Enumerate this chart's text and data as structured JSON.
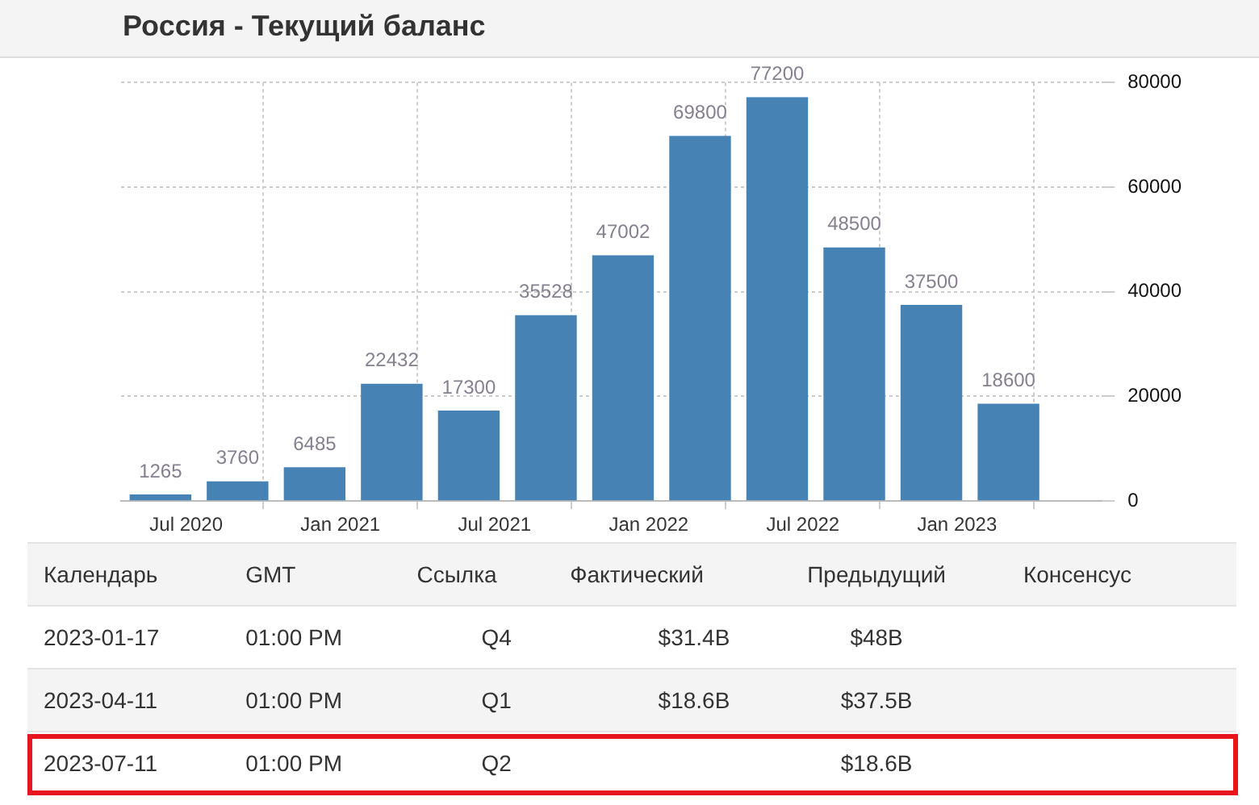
{
  "chart_data": [
    {
      "type": "bar",
      "title": "Россия - Текущий баланс",
      "x": [
        "2020-06",
        "2020-09",
        "2020-12",
        "2021-03",
        "2021-06",
        "2021-09",
        "2021-12",
        "2022-03",
        "2022-06",
        "2022-09",
        "2022-12",
        "2023-03"
      ],
      "values": [
        1265,
        3760,
        6485,
        22432,
        17300,
        35528,
        47002,
        69800,
        77200,
        48500,
        37500,
        18600
      ],
      "color": "#4682b4",
      "xlim": [
        "2020-04-15",
        "2023-06-20"
      ],
      "xticks": [
        {
          "value": "2020-07",
          "label": "Jul 2020"
        },
        {
          "value": "2021-01",
          "label": "Jan 2021"
        },
        {
          "value": "2021-07",
          "label": "Jul 2021"
        },
        {
          "value": "2022-01",
          "label": "Jan 2022"
        },
        {
          "value": "2022-07",
          "label": "Jul 2022"
        },
        {
          "value": "2023-01",
          "label": "Jan 2023"
        }
      ],
      "ylim": [
        0,
        80000
      ],
      "yticks": [
        0,
        20000,
        40000,
        60000,
        80000
      ],
      "grid": true,
      "data_labels": true,
      "legend": false
    },
    {
      "type": "other",
      "categories": [
        "Календарь",
        "GMT",
        "Ссылка",
        "Фактический",
        "Предыдущий",
        "Консенсус"
      ],
      "y_categories": [
        "2023-01-17",
        "2023-04-11",
        "2023-07-11"
      ],
      "cell_labels": [
        [
          "01:00 PM",
          "Q4",
          "$31.4B",
          "$48B",
          null
        ],
        [
          "01:00 PM",
          "Q1",
          "$18.6B",
          "$37.5B",
          null
        ],
        [
          "01:00 PM",
          "Q2",
          null,
          "$18.6B",
          null
        ]
      ]
    }
  ]
}
